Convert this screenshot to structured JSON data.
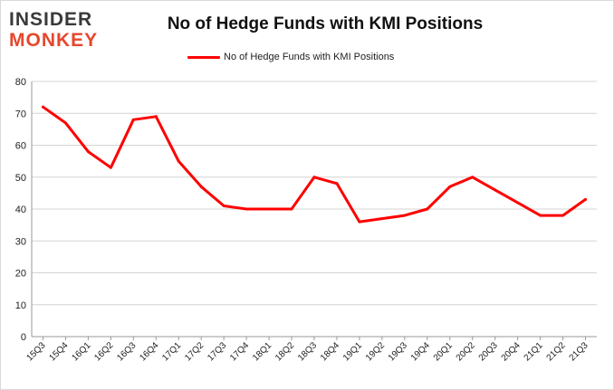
{
  "brand": {
    "line1": "INSIDER",
    "line2": "MONKEY"
  },
  "colors": {
    "series": "#ff0000",
    "grid": "#d4d4d4",
    "axis": "#999999",
    "logo_dark": "#3a3a3a",
    "logo_accent": "#e5472d"
  },
  "chart_data": {
    "type": "line",
    "title": "No of Hedge Funds with KMI Positions",
    "xlabel": "",
    "ylabel": "",
    "ylim": [
      0,
      80
    ],
    "yticks": [
      0,
      10,
      20,
      30,
      40,
      50,
      60,
      70,
      80
    ],
    "grid": true,
    "legend_position": "top-center",
    "categories": [
      "15Q3",
      "15Q4",
      "16Q1",
      "16Q2",
      "16Q3",
      "16Q4",
      "17Q1",
      "17Q2",
      "17Q3",
      "17Q4",
      "18Q1",
      "18Q2",
      "18Q3",
      "18Q4",
      "19Q1",
      "19Q2",
      "19Q3",
      "19Q4",
      "20Q1",
      "20Q2",
      "20Q3",
      "20Q4",
      "21Q1",
      "21Q2",
      "21Q3"
    ],
    "series": [
      {
        "name": "No of Hedge Funds with KMI Positions",
        "values": [
          72,
          67,
          58,
          53,
          68,
          69,
          55,
          47,
          41,
          40,
          40,
          40,
          50,
          48,
          36,
          37,
          38,
          40,
          47,
          50,
          46,
          42,
          38,
          38,
          43
        ]
      }
    ]
  }
}
